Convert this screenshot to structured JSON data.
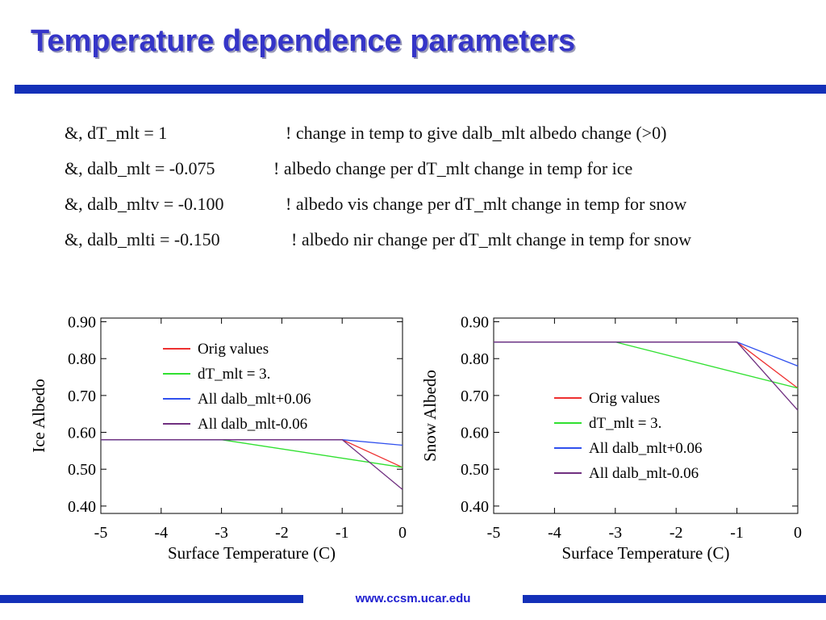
{
  "slide": {
    "title": "Temperature dependence parameters",
    "accent_color": "#1430b8",
    "title_color": "#3535c8",
    "footer_link": "www.ccsm.ucar.edu",
    "footer_color": "#2020d0"
  },
  "params": [
    {
      "code": "&,  dT_mlt = 1",
      "comment": "! change in temp to give dalb_mlt albedo change (>0)"
    },
    {
      "code": "&,  dalb_mlt = -0.075",
      "comment": "! albedo change per dT_mlt change in temp for ice"
    },
    {
      "code": "&,  dalb_mltv = -0.100",
      "comment": "! albedo vis change per dT_mlt change in temp for snow"
    },
    {
      "code": "&,  dalb_mlti = -0.150",
      "comment": "! albedo nir change per dT_mlt change in temp for snow"
    }
  ],
  "chart_data": [
    {
      "type": "line",
      "xlabel": "Surface Temperature (C)",
      "ylabel": "Ice Albedo",
      "xlim": [
        -5,
        0
      ],
      "ylim": [
        0.38,
        0.91
      ],
      "xticks": [
        -5,
        -4,
        -3,
        -2,
        -1,
        0
      ],
      "xtick_labels": [
        "-5",
        "-4",
        "-3",
        "-2",
        "-1",
        "0"
      ],
      "yticks": [
        0.4,
        0.5,
        0.6,
        0.7,
        0.8,
        0.9
      ],
      "ytick_labels": [
        "0.40",
        "0.50",
        "0.60",
        "0.70",
        "0.80",
        "0.90"
      ],
      "grid": false,
      "legend": "top-center",
      "series": [
        {
          "name": "Orig values",
          "color": "#ee3030",
          "x": [
            -5,
            -1,
            0
          ],
          "y": [
            0.58,
            0.58,
            0.505
          ]
        },
        {
          "name": "dT_mlt = 3.",
          "color": "#30e030",
          "x": [
            -5,
            -3,
            0
          ],
          "y": [
            0.58,
            0.58,
            0.505
          ]
        },
        {
          "name": "All dalb_mlt+0.06",
          "color": "#3050ee",
          "x": [
            -5,
            -1,
            0
          ],
          "y": [
            0.58,
            0.58,
            0.565
          ]
        },
        {
          "name": "All dalb_mlt-0.06",
          "color": "#703080",
          "x": [
            -5,
            -1,
            0
          ],
          "y": [
            0.58,
            0.58,
            0.445
          ]
        }
      ]
    },
    {
      "type": "line",
      "xlabel": "Surface Temperature (C)",
      "ylabel": "Snow Albedo",
      "xlim": [
        -5,
        0
      ],
      "ylim": [
        0.38,
        0.91
      ],
      "xticks": [
        -5,
        -4,
        -3,
        -2,
        -1,
        0
      ],
      "xtick_labels": [
        "-5",
        "-4",
        "-3",
        "-2",
        "-1",
        "0"
      ],
      "yticks": [
        0.4,
        0.5,
        0.6,
        0.7,
        0.8,
        0.9
      ],
      "ytick_labels": [
        "0.40",
        "0.50",
        "0.60",
        "0.70",
        "0.80",
        "0.90"
      ],
      "grid": false,
      "legend": "center-right",
      "series": [
        {
          "name": "Orig values",
          "color": "#ee3030",
          "x": [
            -5,
            -1,
            0
          ],
          "y": [
            0.845,
            0.845,
            0.72
          ]
        },
        {
          "name": "dT_mlt = 3.",
          "color": "#30e030",
          "x": [
            -5,
            -3,
            0
          ],
          "y": [
            0.845,
            0.845,
            0.72
          ]
        },
        {
          "name": "All dalb_mlt+0.06",
          "color": "#3050ee",
          "x": [
            -5,
            -1,
            0
          ],
          "y": [
            0.845,
            0.845,
            0.78
          ]
        },
        {
          "name": "All dalb_mlt-0.06",
          "color": "#703080",
          "x": [
            -5,
            -1,
            0
          ],
          "y": [
            0.845,
            0.845,
            0.66
          ]
        }
      ]
    }
  ]
}
